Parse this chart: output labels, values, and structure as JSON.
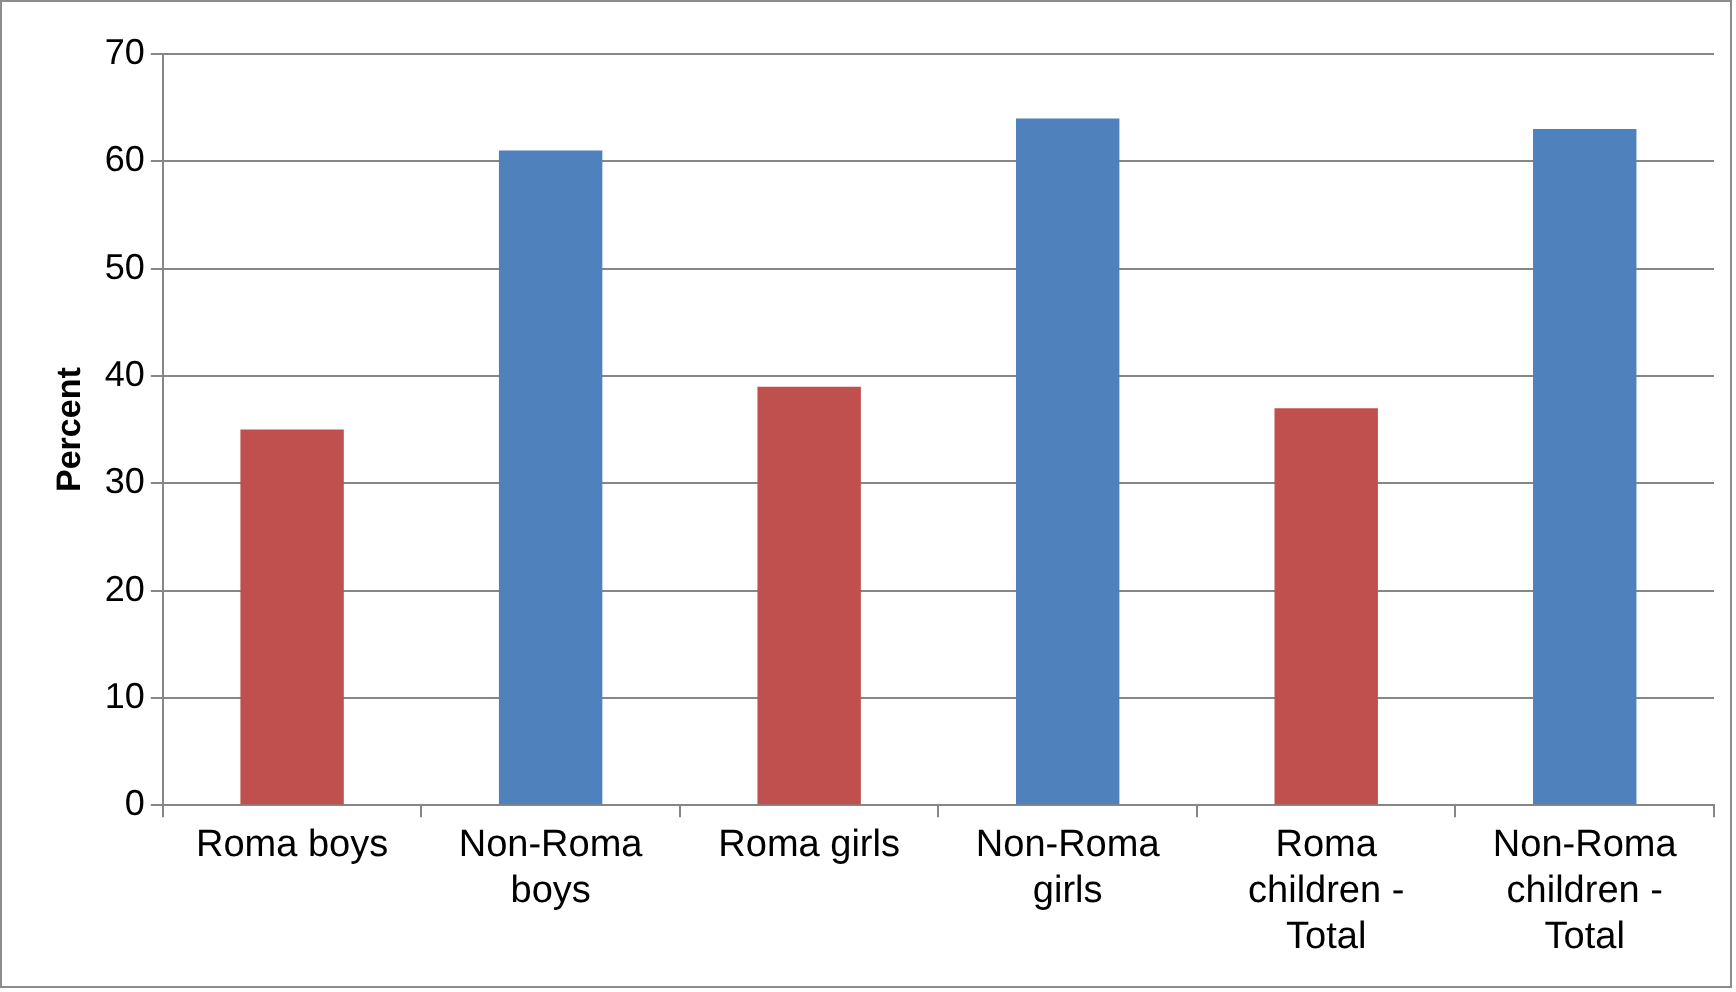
{
  "chart_data": {
    "type": "bar",
    "ylabel": "Percent",
    "categories": [
      "Roma boys",
      "Non-Roma boys",
      "Roma girls",
      "Non-Roma girls",
      "Roma children - Total",
      "Non-Roma children - Total"
    ],
    "values": [
      35,
      61,
      39,
      64,
      37,
      63
    ],
    "colors": [
      "#c0504d",
      "#4f81bd",
      "#c0504d",
      "#4f81bd",
      "#c0504d",
      "#4f81bd"
    ],
    "ylim": [
      0,
      70
    ],
    "yticks": [
      0,
      10,
      20,
      30,
      40,
      50,
      60,
      70
    ],
    "grid": "y",
    "legend": false
  }
}
